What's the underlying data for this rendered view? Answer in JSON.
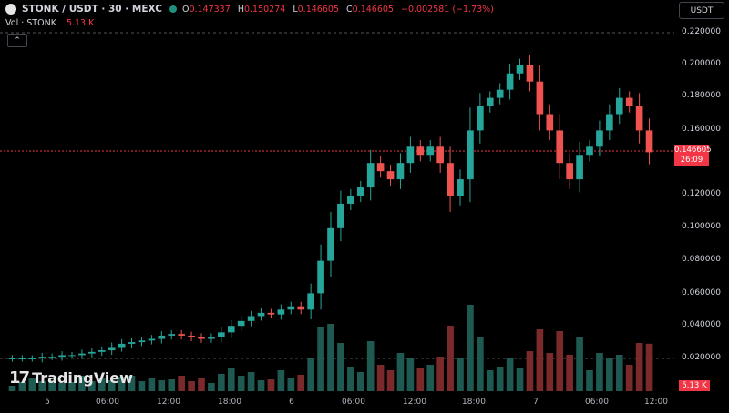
{
  "header": {
    "symbol": "STONK / USDT · 30 · MEXC",
    "ohlc": [
      {
        "k": "O",
        "v": "0.147337"
      },
      {
        "k": "H",
        "v": "0.150274"
      },
      {
        "k": "L",
        "v": "0.146605"
      },
      {
        "k": "C",
        "v": "0.146605"
      },
      {
        "k": "",
        "v": "−0.002581 (−1.73%)"
      }
    ]
  },
  "volume_row": {
    "label": "Vol · STONK",
    "value": "5.13 K"
  },
  "currency_button": "USDT",
  "logo_text": "TradingView",
  "price_axis": [
    "0.220000",
    "0.200000",
    "0.180000",
    "0.160000",
    "0.120000",
    "0.100000",
    "0.080000",
    "0.060000",
    "0.040000",
    "0.020000"
  ],
  "price_tag": {
    "price": "0.146605",
    "countdown": "26:09"
  },
  "volume_tag": "5.13 K",
  "time_axis": [
    "5",
    "06:00",
    "12:00",
    "18:00",
    "6",
    "06:00",
    "12:00",
    "18:00",
    "7",
    "06:00",
    "12:00"
  ],
  "colors": {
    "up": "#26a69a",
    "down": "#ef5350",
    "background": "#000000",
    "grid": "#2a2e39"
  },
  "chart_data": {
    "type": "candlestick",
    "interval": "30",
    "ylim": [
      0.0,
      0.23
    ],
    "candles_close_approx": [
      0.02,
      0.02,
      0.02,
      0.021,
      0.021,
      0.022,
      0.022,
      0.023,
      0.024,
      0.025,
      0.027,
      0.029,
      0.03,
      0.031,
      0.032,
      0.034,
      0.035,
      0.034,
      0.033,
      0.032,
      0.033,
      0.036,
      0.04,
      0.043,
      0.046,
      0.048,
      0.047,
      0.05,
      0.052,
      0.05,
      0.06,
      0.08,
      0.1,
      0.115,
      0.12,
      0.125,
      0.14,
      0.135,
      0.13,
      0.14,
      0.15,
      0.145,
      0.15,
      0.14,
      0.12,
      0.13,
      0.16,
      0.175,
      0.18,
      0.185,
      0.195,
      0.2,
      0.19,
      0.17,
      0.16,
      0.14,
      0.13,
      0.145,
      0.15,
      0.16,
      0.17,
      0.18,
      0.175,
      0.16,
      0.146605
    ],
    "last_close": 0.146605
  }
}
